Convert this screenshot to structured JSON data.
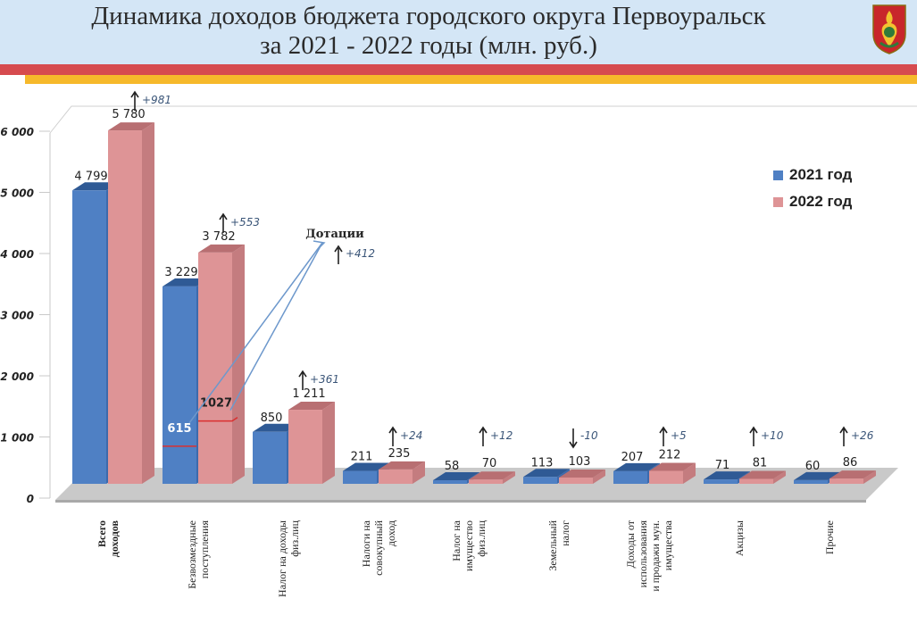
{
  "header": {
    "title_line1": "Динамика доходов бюджета городского округа Первоуральск",
    "title_line2": "за 2021 - 2022 годы (млн. руб.)",
    "emblem_icon": "coat-of-arms-icon"
  },
  "colors": {
    "series_2021": "#4f80c4",
    "series_2022": "#de9496",
    "header_bg": "#d4e6f6",
    "stripe_red": "#d64b4f",
    "stripe_yellow": "#f6b92b"
  },
  "chart_data": {
    "type": "bar",
    "ylim": [
      0,
      6000
    ],
    "yticks": [
      "0",
      "1 000",
      "2 000",
      "3 000",
      "4 000",
      "5 000",
      "6 000"
    ],
    "legend_position": "right",
    "categories": [
      [
        "Всего",
        "доходов"
      ],
      [
        "Безвозмездные",
        "поступления"
      ],
      [
        "Налог на доходы",
        "физ.лиц"
      ],
      [
        "Налоги на",
        "совокупный",
        "доход"
      ],
      [
        "Налог на",
        "имущество",
        "физ.лиц"
      ],
      [
        "Земельный",
        "налог"
      ],
      [
        "Доходы от",
        "использования",
        "и продажи  мун.",
        "имущества"
      ],
      [
        "Акцизы"
      ],
      [
        "Прочие"
      ]
    ],
    "series": [
      {
        "name": "2021 год",
        "values": [
          4799,
          3229,
          850,
          211,
          58,
          113,
          207,
          71,
          60
        ],
        "labels": [
          "4 799",
          "3 229",
          "850",
          "211",
          "58",
          "113",
          "207",
          "71",
          "60"
        ]
      },
      {
        "name": "2022 год",
        "values": [
          5780,
          3782,
          1211,
          235,
          70,
          103,
          212,
          81,
          86
        ],
        "labels": [
          "5 780",
          "3 782",
          "1 211",
          "235",
          "70",
          "103",
          "212",
          "81",
          "86"
        ]
      }
    ],
    "changes": [
      "+981",
      "+553",
      "+361",
      "+24",
      "+12",
      "-10",
      "+5",
      "+10",
      "+26"
    ],
    "change_direction": [
      "up",
      "up",
      "up",
      "up",
      "up",
      "down",
      "up",
      "up",
      "up"
    ],
    "annotations": {
      "dotacii_label": "Дотации",
      "dotacii_change": "+412",
      "dotacii_2021": 615,
      "dotacii_2022": 1027,
      "dotacii_2021_label": "615",
      "dotacii_2022_label": "1027"
    }
  }
}
